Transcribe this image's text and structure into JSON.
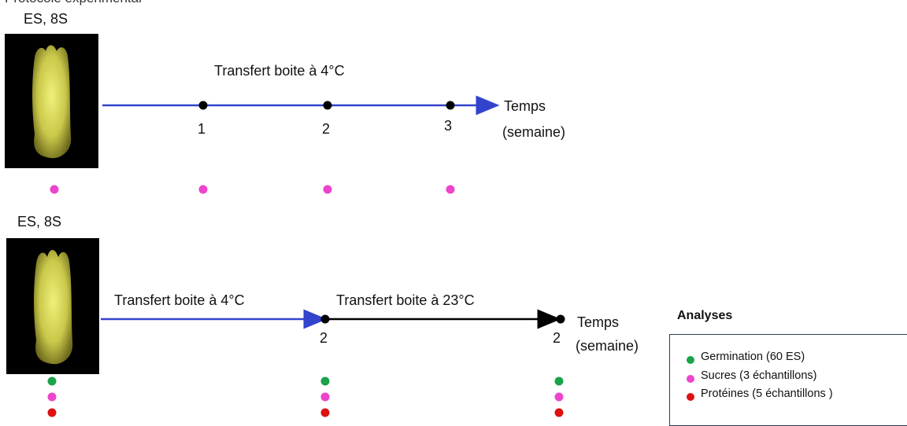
{
  "top_title_fragment": "Protocole expérimental",
  "panel1": {
    "label": "ES, 8S",
    "step_label": "Transfert boite à 4°C",
    "ticks": [
      "1",
      "2",
      "3"
    ],
    "axis_label_1": "Temps",
    "axis_label_2": "(semaine)"
  },
  "panel2": {
    "label": "ES, 8S",
    "step1_label": "Transfert boite à 4°C",
    "step2_label": "Transfert boite à 23°C",
    "ticks": [
      "2",
      "2"
    ],
    "axis_label_1": "Temps",
    "axis_label_2": "(semaine)"
  },
  "legend": {
    "title": "Analyses",
    "items": [
      {
        "label": "Germination (60 ES)",
        "color": "#1aa34a"
      },
      {
        "label": "Sucres (3 échantillons)",
        "color": "#ee44cc"
      },
      {
        "label": "Protéines (5 échantillons )",
        "color": "#dd1111"
      }
    ]
  },
  "colors": {
    "axis_blue": "#3344cc",
    "axis_black": "#000000",
    "photo_bg": "#000000",
    "seed": "#d8d85a"
  }
}
